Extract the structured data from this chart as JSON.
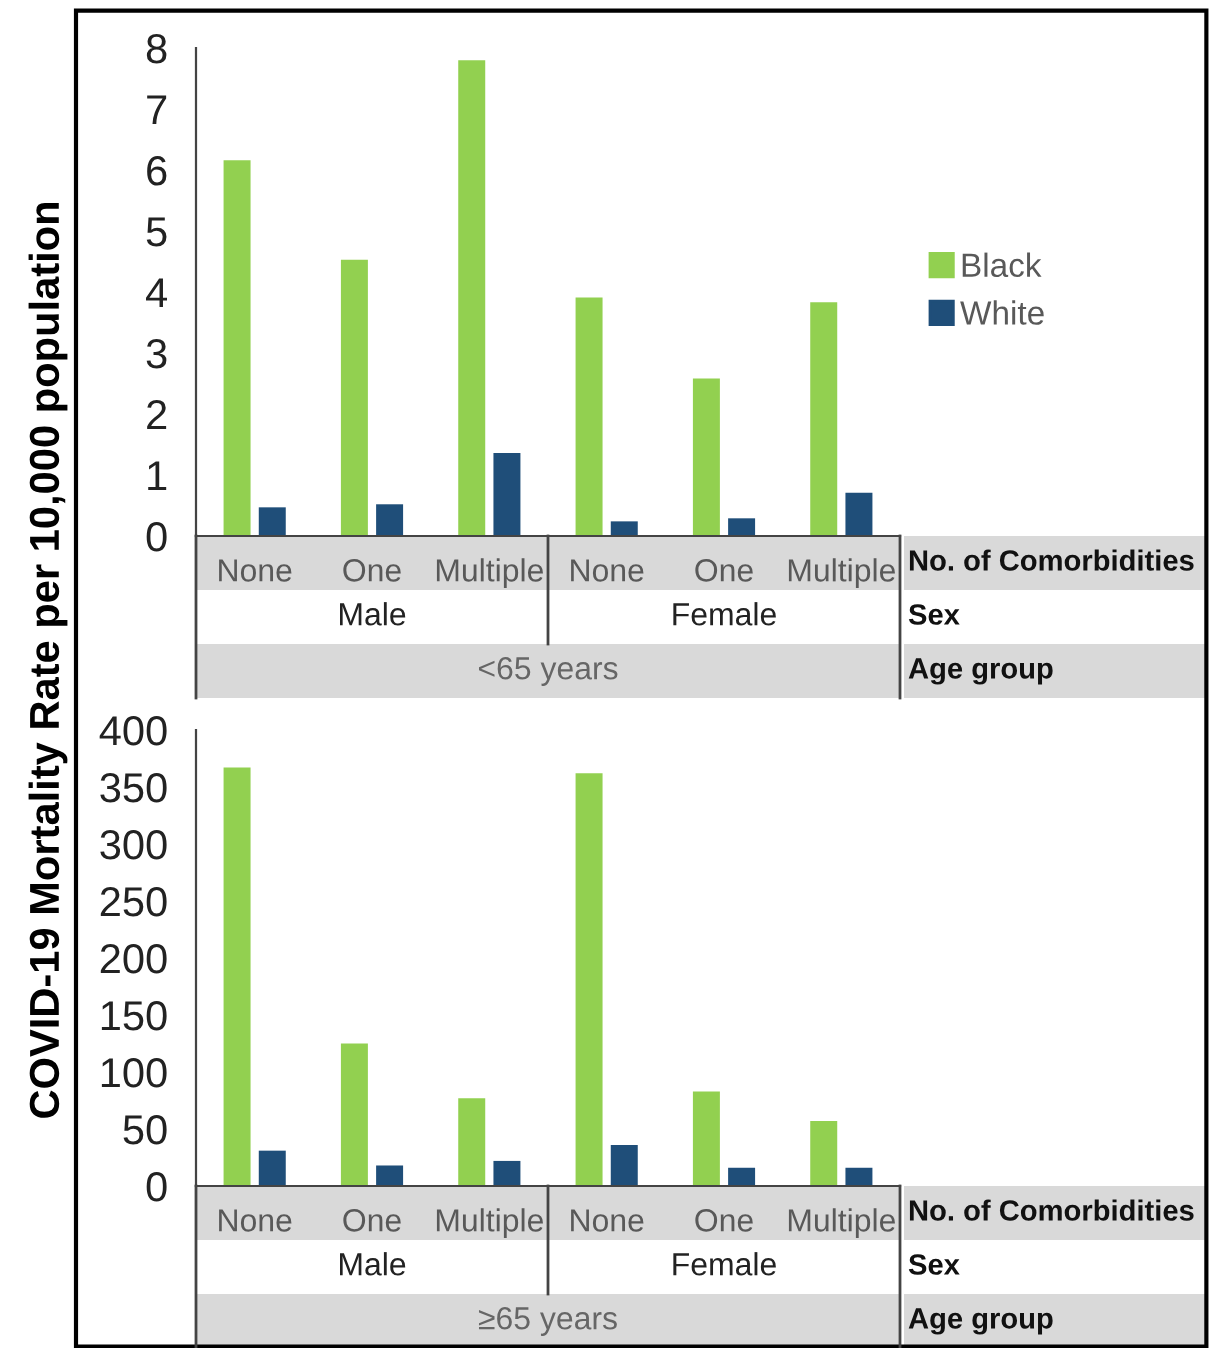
{
  "chart_data": [
    {
      "type": "bar",
      "ylabel": "COVID-19 Mortality Rate per 10,000 population",
      "categories": [
        "None",
        "One",
        "Multiple",
        "None",
        "One",
        "Multiple"
      ],
      "series": [
        {
          "name": "Black",
          "color": "#92d050",
          "values": [
            6.16,
            4.53,
            7.8,
            3.91,
            2.58,
            3.83
          ]
        },
        {
          "name": "White",
          "color": "#1f4e79",
          "values": [
            0.47,
            0.52,
            1.36,
            0.24,
            0.29,
            0.71
          ]
        }
      ],
      "ylim": [
        0,
        8
      ],
      "yticks": [
        0,
        1,
        2,
        3,
        4,
        5,
        6,
        7,
        8
      ],
      "legend": "right",
      "grid": false,
      "annotations": [
        "Male",
        "Female",
        "<65 years",
        "No. of Comorbidities",
        "Sex",
        "Age group"
      ]
    },
    {
      "type": "bar",
      "categories": [
        "None",
        "One",
        "Multiple",
        "None",
        "One",
        "Multiple"
      ],
      "series": [
        {
          "color": "#92d050",
          "values": [
            367,
            125,
            77,
            362,
            83,
            57
          ]
        },
        {
          "color": "#1f4e79",
          "values": [
            31,
            18,
            22,
            36,
            16,
            16
          ]
        }
      ],
      "ylim": [
        0,
        400
      ],
      "yticks": [
        0,
        50,
        100,
        150,
        200,
        250,
        300,
        350,
        400
      ],
      "grid": false,
      "annotations": [
        "Male",
        "Female",
        "≥65 years",
        "No. of Comorbidities",
        "Sex",
        "Age group"
      ]
    }
  ]
}
